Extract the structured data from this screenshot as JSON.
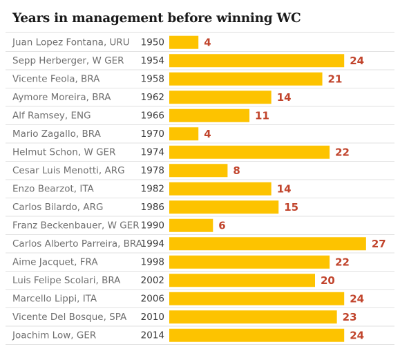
{
  "chart_data": {
    "type": "bar",
    "orientation": "horizontal",
    "title": "Years in management before winning WC",
    "categories": [
      "Juan Lopez Fontana, URU",
      "Sepp Herberger, W GER",
      "Vicente Feola, BRA",
      "Aymore Moreira, BRA",
      "Alf Ramsey, ENG",
      "Mario Zagallo, BRA",
      "Helmut Schon, W GER",
      "Cesar Luis Menotti, ARG",
      "Enzo Bearzot, ITA",
      "Carlos Bilardo, ARG",
      "Franz Beckenbauer, W GER",
      "Carlos Alberto Parreira, BRA",
      "Aime Jacquet, FRA",
      "Luis Felipe Scolari, BRA",
      "Marcello Lippi, ITA",
      "Vicente Del Bosque, SPA",
      "Joachim Low, GER"
    ],
    "years": [
      "1950",
      "1954",
      "1958",
      "1962",
      "1966",
      "1970",
      "1974",
      "1978",
      "1982",
      "1986",
      "1990",
      "1994",
      "1998",
      "2002",
      "2006",
      "2010",
      "2014"
    ],
    "values": [
      4,
      24,
      21,
      14,
      11,
      4,
      22,
      8,
      14,
      15,
      6,
      27,
      22,
      20,
      24,
      23,
      24
    ],
    "xlim": [
      0,
      27
    ],
    "grid": false,
    "colors": {
      "bar": "#FDC300",
      "value_label": "#C1442C",
      "separator": "#E2E2E2",
      "axis_line": "#DDDDDD"
    }
  }
}
